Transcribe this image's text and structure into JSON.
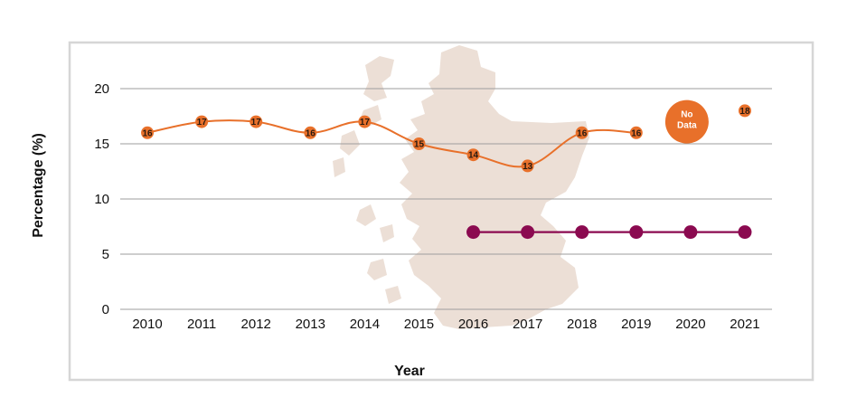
{
  "chart_data": {
    "type": "line",
    "xlabel": "Year",
    "ylabel": "Percentage (%)",
    "ylim": [
      0,
      20
    ],
    "yticks": [
      0,
      5,
      10,
      15,
      20
    ],
    "categories": [
      "2010",
      "2011",
      "2012",
      "2013",
      "2014",
      "2015",
      "2016",
      "2017",
      "2018",
      "2019",
      "2020",
      "2021"
    ],
    "grid": true,
    "background_image": "map-of-scotland",
    "series": [
      {
        "name": "Series 1",
        "color": "#e8702a",
        "values": [
          16,
          17,
          17,
          16,
          17,
          15,
          14,
          13,
          16,
          16,
          null,
          18
        ],
        "labels": [
          "16",
          "17",
          "17",
          "16",
          "17",
          "15",
          "14",
          "13",
          "16",
          "16",
          "",
          "18"
        ]
      },
      {
        "name": "Series 2",
        "color": "#8b0a50",
        "values": [
          null,
          null,
          null,
          null,
          null,
          null,
          7,
          7,
          7,
          7,
          7,
          7
        ]
      }
    ],
    "annotations": [
      {
        "category": "2020",
        "y": 17,
        "text": "No Data",
        "color": "#e8702a"
      }
    ]
  }
}
